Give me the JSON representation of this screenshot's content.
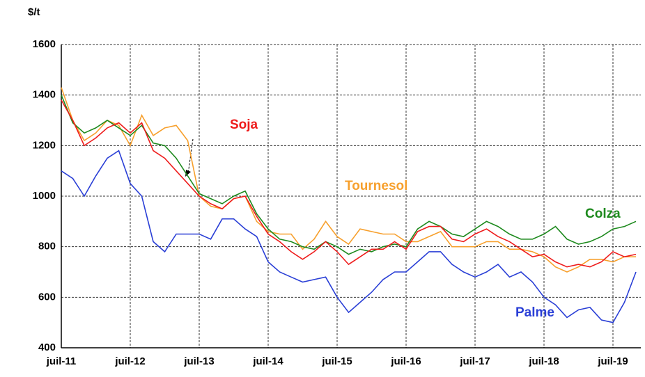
{
  "chart_data": {
    "type": "line",
    "y_label": "$/t",
    "categories": [
      "juil-11",
      null,
      null,
      null,
      null,
      null,
      "juil-12",
      null,
      null,
      null,
      null,
      null,
      "juil-13",
      null,
      null,
      null,
      null,
      null,
      "juil-14",
      null,
      null,
      null,
      null,
      null,
      "juil-15",
      null,
      null,
      null,
      null,
      null,
      "juil-16",
      null,
      null,
      null,
      null,
      null,
      "juil-17",
      null,
      null,
      null,
      null,
      null,
      "juil-18",
      null,
      null,
      null,
      null,
      null,
      "juil-19",
      null,
      null
    ],
    "ylim": [
      400,
      1600
    ],
    "yticks": [
      400,
      600,
      800,
      1000,
      1200,
      1400,
      1600
    ],
    "grid": true,
    "series": [
      {
        "name": "Tournesol",
        "color": "#f7a02d",
        "values": [
          1430,
          1300,
          1220,
          1250,
          1300,
          1280,
          1200,
          1320,
          1240,
          1270,
          1280,
          1220,
          1000,
          960,
          950,
          990,
          1000,
          900,
          860,
          850,
          850,
          790,
          830,
          900,
          840,
          810,
          870,
          860,
          850,
          850,
          820,
          820,
          840,
          860,
          800,
          800,
          800,
          820,
          820,
          790,
          790,
          780,
          760,
          720,
          700,
          720,
          750,
          750,
          740,
          760,
          760
        ]
      },
      {
        "name": "Colza",
        "color": "#1e8a1e",
        "values": [
          1400,
          1290,
          1250,
          1270,
          1300,
          1270,
          1240,
          1280,
          1210,
          1200,
          1150,
          1080,
          1010,
          990,
          970,
          1000,
          1020,
          930,
          870,
          830,
          820,
          800,
          790,
          820,
          800,
          770,
          790,
          780,
          800,
          810,
          800,
          870,
          900,
          880,
          850,
          840,
          870,
          900,
          880,
          850,
          830,
          830,
          850,
          880,
          830,
          810,
          820,
          840,
          870,
          880,
          900
        ]
      },
      {
        "name": "Soja",
        "color": "#ee1c1c",
        "values": [
          1380,
          1300,
          1200,
          1230,
          1270,
          1290,
          1250,
          1290,
          1180,
          1150,
          1100,
          1050,
          1000,
          970,
          950,
          990,
          1000,
          920,
          850,
          820,
          780,
          750,
          780,
          820,
          780,
          730,
          760,
          790,
          790,
          820,
          790,
          860,
          880,
          880,
          830,
          820,
          850,
          870,
          840,
          820,
          790,
          760,
          770,
          740,
          720,
          730,
          720,
          740,
          780,
          760,
          770
        ]
      },
      {
        "name": "Palme",
        "color": "#2a3fd6",
        "values": [
          1100,
          1070,
          1000,
          1080,
          1150,
          1180,
          1050,
          1000,
          820,
          780,
          850,
          850,
          850,
          830,
          910,
          910,
          870,
          840,
          740,
          700,
          680,
          660,
          670,
          680,
          600,
          540,
          580,
          620,
          670,
          700,
          700,
          740,
          780,
          780,
          730,
          700,
          680,
          700,
          730,
          680,
          700,
          660,
          600,
          570,
          520,
          550,
          560,
          510,
          500,
          580,
          700
        ]
      }
    ]
  }
}
